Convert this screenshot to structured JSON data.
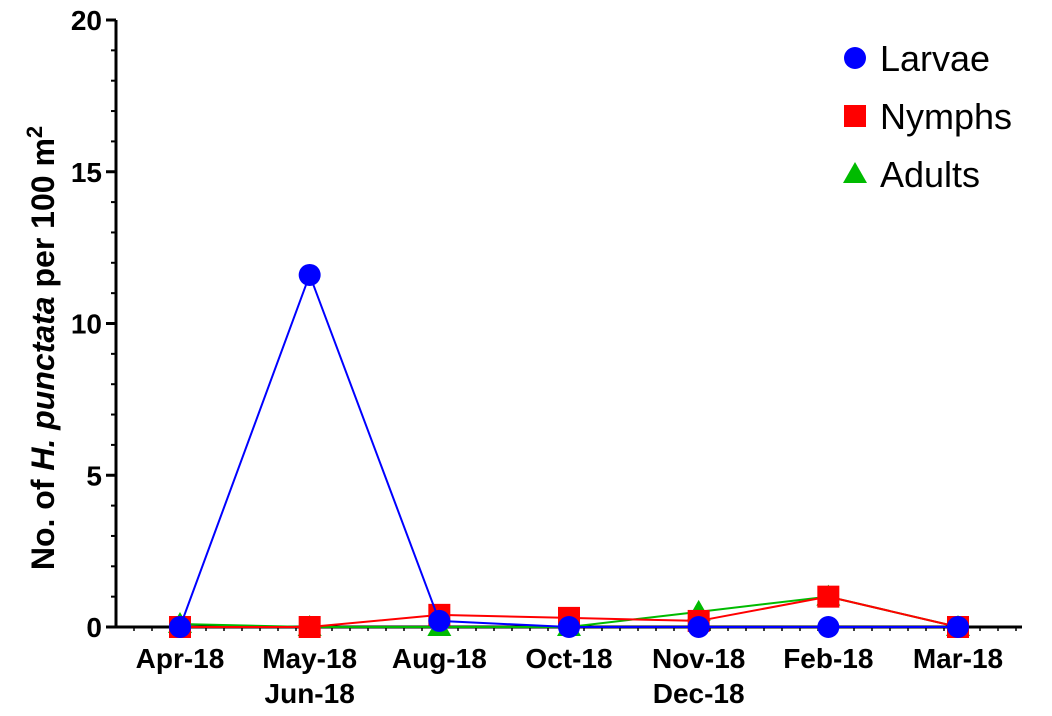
{
  "chart_data": {
    "type": "line",
    "categories": [
      "Apr-18",
      "May-18",
      "Aug-18",
      "Oct-18",
      "Nov-18",
      "Feb-18",
      "Mar-18"
    ],
    "category_sublabels": [
      "",
      "Jun-18",
      "",
      "",
      "Dec-18",
      "",
      ""
    ],
    "ylabel_parts": {
      "pre": "No. of ",
      "italic": "H. punctata",
      "post": " per 100 m",
      "sup": "2"
    },
    "ylim": [
      0,
      20
    ],
    "yticks": [
      "0",
      "5",
      "10",
      "15",
      "20"
    ],
    "legend_position": "top-right",
    "series": [
      {
        "name": "Larvae",
        "color": "#0000ff",
        "marker": "circle",
        "values": [
          0,
          11.6,
          0.2,
          0,
          0,
          0,
          0
        ]
      },
      {
        "name": "Nymphs",
        "color": "#ff0000",
        "marker": "square",
        "values": [
          0,
          0,
          0.4,
          0.3,
          0.2,
          1.0,
          0
        ]
      },
      {
        "name": "Adults",
        "color": "#00bb00",
        "marker": "triangle",
        "values": [
          0.1,
          0,
          0,
          0,
          0.5,
          1.0,
          0
        ]
      }
    ]
  }
}
